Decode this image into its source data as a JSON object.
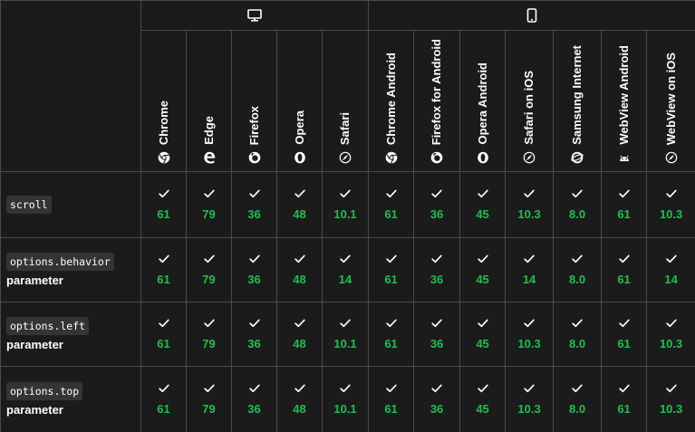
{
  "platforms": [
    {
      "name": "desktop",
      "icon": "desktop-icon"
    },
    {
      "name": "mobile",
      "icon": "mobile-icon"
    }
  ],
  "browsers": [
    {
      "name": "Chrome",
      "icon": "chrome-icon"
    },
    {
      "name": "Edge",
      "icon": "edge-icon"
    },
    {
      "name": "Firefox",
      "icon": "firefox-icon"
    },
    {
      "name": "Opera",
      "icon": "opera-icon"
    },
    {
      "name": "Safari",
      "icon": "safari-icon"
    },
    {
      "name": "Chrome Android",
      "icon": "chrome-icon"
    },
    {
      "name": "Firefox for Android",
      "icon": "firefox-icon"
    },
    {
      "name": "Opera Android",
      "icon": "opera-icon"
    },
    {
      "name": "Safari on iOS",
      "icon": "safari-icon"
    },
    {
      "name": "Samsung Internet",
      "icon": "samsung-internet-icon"
    },
    {
      "name": "WebView Android",
      "icon": "android-icon"
    },
    {
      "name": "WebView on iOS",
      "icon": "safari-icon"
    }
  ],
  "features": [
    {
      "code": "scroll",
      "suffix": "",
      "versions": [
        "61",
        "79",
        "36",
        "48",
        "10.1",
        "61",
        "36",
        "45",
        "10.3",
        "8.0",
        "61",
        "10.3"
      ]
    },
    {
      "code": "options.behavior",
      "suffix": "parameter",
      "versions": [
        "61",
        "79",
        "36",
        "48",
        "14",
        "61",
        "36",
        "45",
        "14",
        "8.0",
        "61",
        "14"
      ]
    },
    {
      "code": "options.left",
      "suffix": "parameter",
      "versions": [
        "61",
        "79",
        "36",
        "48",
        "10.1",
        "61",
        "36",
        "45",
        "10.3",
        "8.0",
        "61",
        "10.3"
      ]
    },
    {
      "code": "options.top",
      "suffix": "parameter",
      "versions": [
        "61",
        "79",
        "36",
        "48",
        "10.1",
        "61",
        "36",
        "45",
        "10.3",
        "8.0",
        "61",
        "10.3"
      ]
    }
  ],
  "colors": {
    "supported": "#1fbf4f",
    "background": "#1b1b1b",
    "border": "#4a4a4a"
  },
  "support_icon": "check-icon"
}
